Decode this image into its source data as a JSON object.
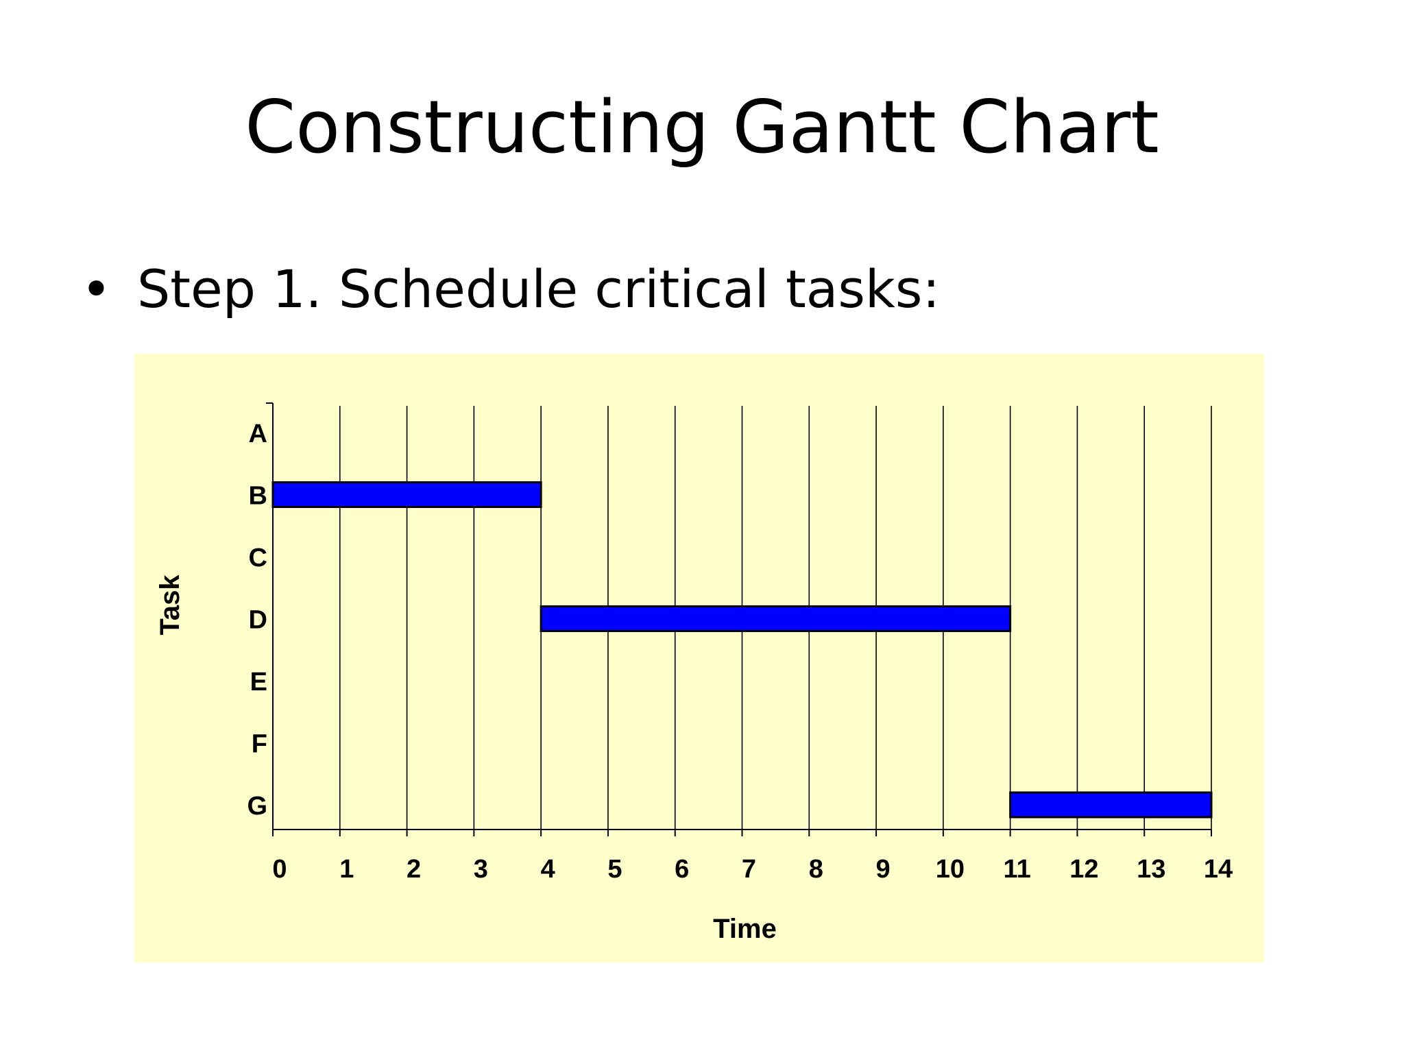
{
  "slide": {
    "title": "Constructing Gantt Chart",
    "bullet": "•",
    "bullet_text": "Step 1. Schedule critical tasks:"
  },
  "colors": {
    "chart_background": "#ffffcc",
    "bar_fill": "#0000ff",
    "bar_stroke": "#000000",
    "grid": "#000000",
    "text": "#000000"
  },
  "chart_data": {
    "type": "bar",
    "orientation": "horizontal-gantt",
    "categories": [
      "A",
      "B",
      "C",
      "D",
      "E",
      "F",
      "G"
    ],
    "tasks": [
      {
        "task": "B",
        "start": 0,
        "end": 4
      },
      {
        "task": "D",
        "start": 4,
        "end": 11
      },
      {
        "task": "G",
        "start": 11,
        "end": 14
      }
    ],
    "xticks": [
      0,
      1,
      2,
      3,
      4,
      5,
      6,
      7,
      8,
      9,
      10,
      11,
      12,
      13,
      14
    ],
    "xlim": [
      0,
      14
    ],
    "xlabel": "Time",
    "ylabel": "Task",
    "grid": "vertical"
  }
}
